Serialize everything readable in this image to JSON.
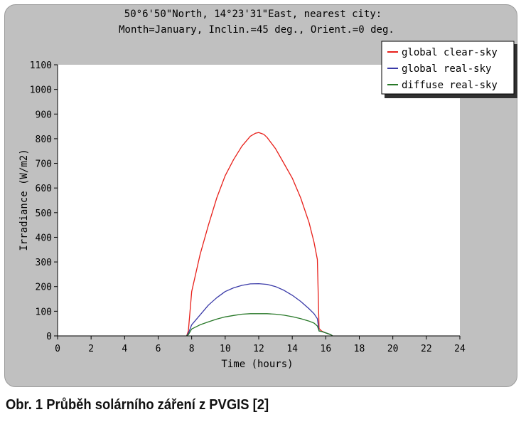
{
  "caption": "Obr. 1 Průběh solárního záření z PVGIS [2]",
  "chart_data": {
    "type": "line",
    "title": "50°6'50\"North, 14°23'31\"East, nearest city:",
    "subtitle": "Month=January, Inclin.=45 deg., Orient.=0 deg.",
    "xlabel": "Time (hours)",
    "ylabel": "Irradiance (W/m2)",
    "xlim": [
      0,
      24
    ],
    "ylim": [
      0,
      1100
    ],
    "xticks": [
      0,
      2,
      4,
      6,
      8,
      10,
      12,
      14,
      16,
      18,
      20,
      22,
      24
    ],
    "yticks": [
      0,
      100,
      200,
      300,
      400,
      500,
      600,
      700,
      800,
      900,
      1000,
      1100
    ],
    "grid": false,
    "legend_position": "top-right",
    "series": [
      {
        "name": "global clear-sky",
        "color": "#e8201a",
        "x": [
          7.7,
          7.8,
          8.0,
          8.5,
          9.0,
          9.5,
          10.0,
          10.5,
          11.0,
          11.5,
          11.8,
          12.0,
          12.3,
          12.5,
          13.0,
          13.5,
          14.0,
          14.5,
          15.0,
          15.3,
          15.5,
          15.6,
          15.75,
          16.0,
          16.3,
          16.4
        ],
        "y": [
          0,
          20,
          180,
          330,
          450,
          560,
          650,
          715,
          770,
          810,
          822,
          825,
          818,
          805,
          760,
          700,
          640,
          560,
          460,
          380,
          310,
          30,
          20,
          12,
          5,
          0
        ]
      },
      {
        "name": "global real-sky",
        "color": "#3a3aa8",
        "x": [
          7.7,
          7.8,
          8.0,
          8.5,
          9.0,
          9.5,
          10.0,
          10.5,
          11.0,
          11.5,
          12.0,
          12.5,
          13.0,
          13.5,
          14.0,
          14.5,
          15.0,
          15.3,
          15.5,
          15.6,
          15.75,
          16.0,
          16.3,
          16.4
        ],
        "y": [
          0,
          10,
          45,
          85,
          125,
          155,
          180,
          195,
          205,
          211,
          212,
          209,
          200,
          185,
          165,
          140,
          110,
          90,
          70,
          20,
          18,
          12,
          5,
          0
        ]
      },
      {
        "name": "diffuse real-sky",
        "color": "#287828",
        "x": [
          7.7,
          7.8,
          8.0,
          8.5,
          9.0,
          9.5,
          10.0,
          10.5,
          11.0,
          11.5,
          12.0,
          12.5,
          13.0,
          13.5,
          14.0,
          14.5,
          15.0,
          15.3,
          15.5,
          15.6,
          15.75,
          16.0,
          16.3,
          16.4
        ],
        "y": [
          0,
          5,
          28,
          45,
          57,
          68,
          77,
          83,
          88,
          90,
          90,
          90,
          88,
          84,
          78,
          70,
          60,
          52,
          40,
          20,
          18,
          12,
          5,
          0
        ]
      }
    ]
  }
}
